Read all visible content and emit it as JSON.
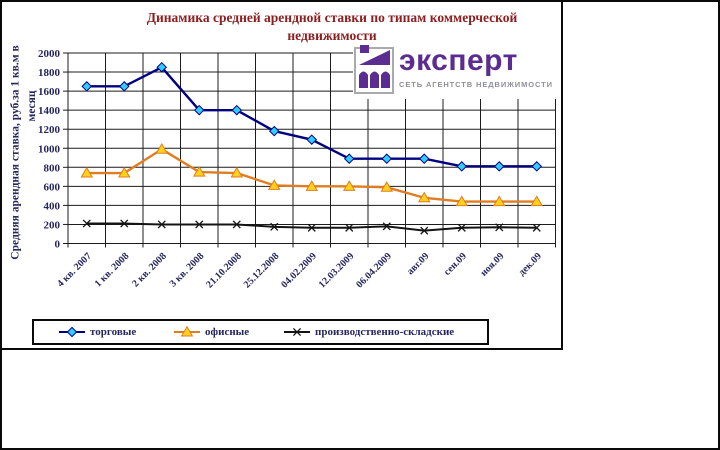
{
  "title": {
    "line1": "Динамика средней арендной ставки по типам коммерческой",
    "line2": "недвижимости",
    "color": "#8b2020"
  },
  "logo": {
    "name": "эксперт",
    "tagline": "СЕТЬ АГЕНТСТВ НЕДВИЖИМОСТИ",
    "brand_color": "#5b2d91",
    "tagline_color": "#8f8f9a"
  },
  "y_axis": {
    "title_line1": "Средняя арендная ставка, руб.за 1 кв.м в",
    "title_line2": "месяц",
    "min": 0,
    "max": 2000,
    "step": 200,
    "label_color": "#26265f"
  },
  "chart_data": {
    "type": "line",
    "title": "Динамика средней арендной ставки по типам коммерческой недвижимости",
    "ylabel": "Средняя арендная ставка, руб.за 1 кв.м в месяц",
    "xlabel": "",
    "ylim": [
      0,
      2000
    ],
    "ytick_step": 200,
    "grid": true,
    "legend_position": "bottom",
    "categories": [
      "4 кв. 2007",
      "1 кв. 2008",
      "2 кв. 2008",
      "3 кв. 2008",
      "21.10.2008",
      "25.12.2008",
      "04.02.2009",
      "12.03.2009",
      "06.04.2009",
      "авг.09",
      "сен.09",
      "ноя.09",
      "дек.09"
    ],
    "series": [
      {
        "name": "торговые",
        "marker": "diamond",
        "line_color": "#000080",
        "marker_fill": "#33ccff",
        "values": [
          1650,
          1650,
          1850,
          1400,
          1400,
          1180,
          1090,
          890,
          890,
          890,
          810,
          810,
          810
        ]
      },
      {
        "name": "офисные",
        "marker": "triangle",
        "line_color": "#e07d22",
        "marker_fill": "#ffd11a",
        "values": [
          740,
          740,
          990,
          750,
          740,
          610,
          600,
          600,
          590,
          480,
          440,
          440,
          440
        ]
      },
      {
        "name": "производственно-складские",
        "marker": "x",
        "line_color": "#141414",
        "marker_fill": "#141414",
        "values": [
          210,
          210,
          200,
          200,
          200,
          175,
          165,
          165,
          180,
          135,
          165,
          170,
          165
        ]
      }
    ]
  }
}
